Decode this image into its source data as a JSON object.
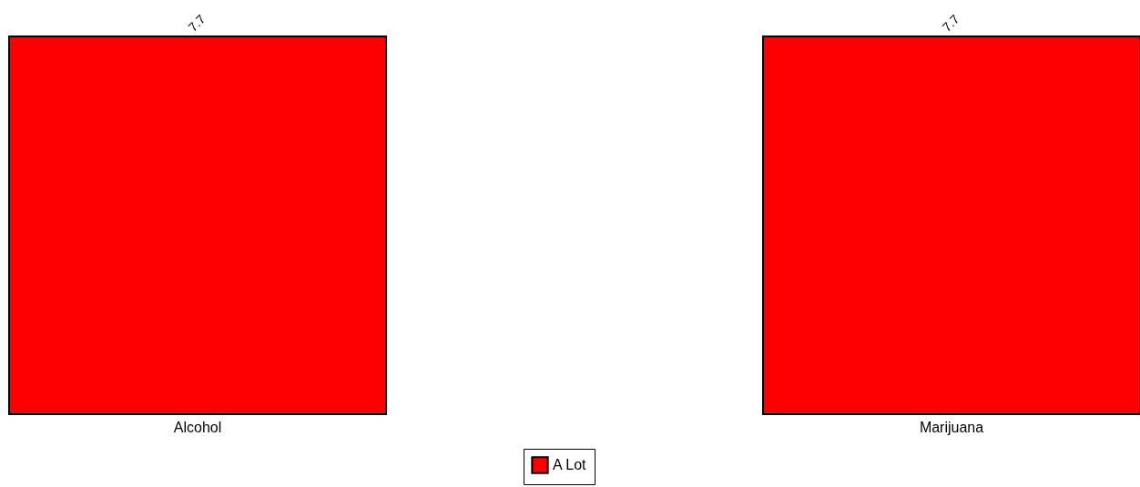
{
  "chart_data": {
    "type": "bar",
    "categories": [
      "Alcohol",
      "Marijuana"
    ],
    "series": [
      {
        "name": "A Lot",
        "color": "#ff0000",
        "values": [
          7.7,
          7.7
        ]
      }
    ],
    "data_labels": true,
    "legend": "bottom",
    "tick_labels": "x"
  }
}
